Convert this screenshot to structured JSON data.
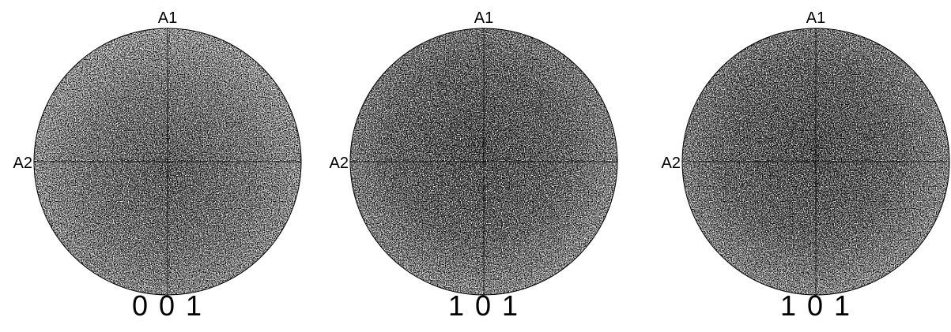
{
  "panels": [
    {
      "top_axis": "A1",
      "left_axis": "A2",
      "label": "0 0 1"
    },
    {
      "top_axis": "A1",
      "left_axis": "A2",
      "label": "1 0 1"
    },
    {
      "top_axis": "A1",
      "left_axis": "A2",
      "label": "1 0 1"
    }
  ]
}
